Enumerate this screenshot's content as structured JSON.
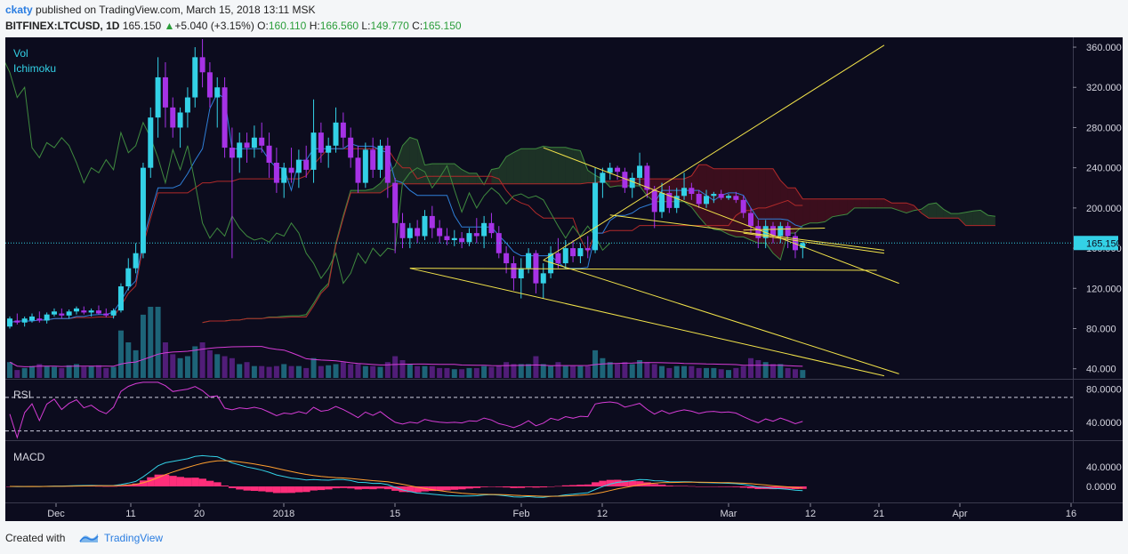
{
  "header": {
    "author": "ckaty",
    "published_text": "published on TradingView.com, March 15, 2018 13:11 MSK",
    "symbol": "BITFINEX:LTCUSD, 1D",
    "last": "165.150",
    "change": "+5.040 (+3.15%)",
    "open_label": "O:",
    "open": "160.110",
    "high_label": "H:",
    "high": "166.560",
    "low_label": "L:",
    "low": "149.770",
    "close_label": "C:",
    "close": "165.150"
  },
  "indicators": {
    "vol": "Vol",
    "ichimoku": "Ichimoku",
    "rsi": "RSI",
    "macd": "MACD"
  },
  "footer": {
    "created_with": "Created with",
    "brand": "TradingView"
  },
  "colors": {
    "background": "#0c0c1e",
    "bull": "#33d1e6",
    "bear": "#a632e6",
    "trendline": "#f2e34a",
    "rsi": "#d63cd6",
    "macd_hist": "#ff2e7a",
    "price_line": "#33d1e6"
  },
  "chart_data": {
    "type": "candlestick",
    "price_axis": {
      "ticks": [
        "360.000",
        "320.000",
        "280.000",
        "240.000",
        "200.000",
        "160.000",
        "120.000",
        "80.000",
        "40.000"
      ],
      "range": [
        30,
        368
      ]
    },
    "x_ticks": [
      "Dec",
      "11",
      "20",
      "2018",
      "15",
      "Feb",
      "12",
      "Mar",
      "12",
      "21",
      "Apr",
      "16"
    ],
    "last_price_label": "165.150",
    "last_price": 165.15,
    "rsi_axis": {
      "ticks": [
        "80.0000",
        "40.0000"
      ],
      "levels": [
        70,
        30
      ]
    },
    "macd_axis": {
      "ticks": [
        "40.0000",
        "0.0000"
      ]
    },
    "ohlc": [
      [
        82,
        92,
        80,
        90
      ],
      [
        88,
        95,
        84,
        86
      ],
      [
        86,
        92,
        82,
        90
      ],
      [
        88,
        95,
        86,
        92
      ],
      [
        90,
        97,
        86,
        88
      ],
      [
        88,
        96,
        85,
        94
      ],
      [
        94,
        100,
        92,
        97
      ],
      [
        95,
        100,
        90,
        93
      ],
      [
        93,
        99,
        90,
        97
      ],
      [
        97,
        102,
        94,
        100
      ],
      [
        98,
        102,
        94,
        96
      ],
      [
        96,
        100,
        92,
        98
      ],
      [
        98,
        103,
        94,
        95
      ],
      [
        95,
        100,
        91,
        93
      ],
      [
        93,
        100,
        90,
        98
      ],
      [
        98,
        125,
        96,
        122
      ],
      [
        122,
        150,
        118,
        140
      ],
      [
        140,
        165,
        135,
        155
      ],
      [
        155,
        245,
        150,
        240
      ],
      [
        240,
        300,
        230,
        290
      ],
      [
        290,
        350,
        270,
        330
      ],
      [
        330,
        345,
        280,
        300
      ],
      [
        300,
        310,
        270,
        280
      ],
      [
        280,
        300,
        260,
        295
      ],
      [
        295,
        320,
        280,
        310
      ],
      [
        310,
        360,
        300,
        350
      ],
      [
        350,
        368,
        320,
        335
      ],
      [
        335,
        345,
        300,
        310
      ],
      [
        310,
        330,
        280,
        320
      ],
      [
        320,
        330,
        250,
        260
      ],
      [
        260,
        280,
        150,
        250
      ],
      [
        250,
        275,
        235,
        265
      ],
      [
        265,
        275,
        245,
        260
      ],
      [
        260,
        282,
        250,
        270
      ],
      [
        270,
        285,
        255,
        262
      ],
      [
        262,
        275,
        230,
        245
      ],
      [
        245,
        260,
        215,
        225
      ],
      [
        225,
        245,
        210,
        240
      ],
      [
        240,
        260,
        225,
        235
      ],
      [
        235,
        258,
        220,
        248
      ],
      [
        248,
        262,
        230,
        238
      ],
      [
        238,
        308,
        225,
        275
      ],
      [
        275,
        285,
        245,
        255
      ],
      [
        255,
        270,
        240,
        262
      ],
      [
        262,
        300,
        255,
        285
      ],
      [
        285,
        295,
        260,
        270
      ],
      [
        270,
        280,
        240,
        250
      ],
      [
        250,
        262,
        215,
        225
      ],
      [
        225,
        265,
        220,
        258
      ],
      [
        258,
        270,
        230,
        238
      ],
      [
        238,
        268,
        230,
        262
      ],
      [
        262,
        270,
        210,
        225
      ],
      [
        225,
        230,
        155,
        185
      ],
      [
        185,
        195,
        160,
        170
      ],
      [
        170,
        185,
        160,
        180
      ],
      [
        180,
        188,
        165,
        172
      ],
      [
        172,
        198,
        168,
        192
      ],
      [
        192,
        202,
        170,
        180
      ],
      [
        180,
        188,
        165,
        172
      ],
      [
        172,
        180,
        163,
        168
      ],
      [
        168,
        178,
        162,
        170
      ],
      [
        170,
        176,
        160,
        166
      ],
      [
        166,
        180,
        162,
        175
      ],
      [
        175,
        190,
        165,
        172
      ],
      [
        172,
        192,
        160,
        185
      ],
      [
        185,
        195,
        170,
        175
      ],
      [
        175,
        182,
        150,
        155
      ],
      [
        155,
        162,
        135,
        145
      ],
      [
        145,
        152,
        118,
        130
      ],
      [
        130,
        150,
        110,
        140
      ],
      [
        140,
        160,
        135,
        155
      ],
      [
        155,
        158,
        115,
        125
      ],
      [
        125,
        145,
        110,
        135
      ],
      [
        135,
        162,
        130,
        155
      ],
      [
        155,
        170,
        140,
        145
      ],
      [
        145,
        168,
        140,
        160
      ],
      [
        160,
        168,
        146,
        152
      ],
      [
        152,
        165,
        145,
        160
      ],
      [
        160,
        172,
        150,
        158
      ],
      [
        158,
        240,
        155,
        225
      ],
      [
        225,
        240,
        210,
        235
      ],
      [
        235,
        245,
        228,
        240
      ],
      [
        240,
        242,
        228,
        236
      ],
      [
        236,
        240,
        215,
        220
      ],
      [
        220,
        235,
        210,
        230
      ],
      [
        230,
        255,
        222,
        242
      ],
      [
        242,
        245,
        210,
        218
      ],
      [
        218,
        222,
        180,
        196
      ],
      [
        196,
        225,
        190,
        215
      ],
      [
        215,
        222,
        195,
        200
      ],
      [
        200,
        220,
        195,
        212
      ],
      [
        212,
        235,
        208,
        220
      ],
      [
        220,
        225,
        208,
        214
      ],
      [
        214,
        218,
        200,
        204
      ],
      [
        204,
        218,
        200,
        212
      ],
      [
        212,
        216,
        205,
        214
      ],
      [
        214,
        218,
        208,
        210
      ],
      [
        210,
        214,
        208,
        212
      ],
      [
        212,
        216,
        205,
        208
      ],
      [
        208,
        212,
        190,
        195
      ],
      [
        195,
        200,
        175,
        182
      ],
      [
        182,
        188,
        160,
        170
      ],
      [
        170,
        188,
        160,
        182
      ],
      [
        182,
        186,
        165,
        172
      ],
      [
        172,
        186,
        165,
        182
      ],
      [
        182,
        186,
        160,
        172
      ],
      [
        172,
        176,
        150,
        158
      ],
      [
        160,
        167,
        150,
        165
      ]
    ],
    "volume": [
      40,
      20,
      25,
      30,
      35,
      30,
      28,
      25,
      32,
      35,
      28,
      30,
      32,
      25,
      28,
      120,
      90,
      70,
      160,
      180,
      180,
      90,
      60,
      50,
      55,
      80,
      90,
      70,
      60,
      55,
      50,
      35,
      40,
      30,
      30,
      28,
      30,
      35,
      30,
      30,
      25,
      50,
      30,
      32,
      35,
      40,
      35,
      35,
      30,
      30,
      28,
      40,
      55,
      45,
      35,
      30,
      30,
      30,
      25,
      25,
      22,
      22,
      25,
      25,
      30,
      28,
      30,
      40,
      35,
      35,
      35,
      55,
      35,
      30,
      40,
      30,
      30,
      30,
      30,
      70,
      50,
      40,
      35,
      40,
      35,
      45,
      40,
      35,
      30,
      25,
      30,
      30,
      30,
      25,
      25,
      25,
      22,
      20,
      25,
      30,
      50,
      45,
      40,
      35,
      35,
      25,
      22,
      20
    ]
  }
}
